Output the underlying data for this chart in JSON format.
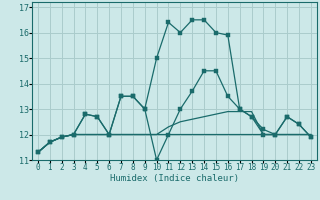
{
  "title": "",
  "xlabel": "Humidex (Indice chaleur)",
  "background_color": "#cce8e8",
  "grid_color": "#aacccc",
  "line_color": "#1a6b6b",
  "xlim": [
    -0.5,
    23.5
  ],
  "ylim": [
    11,
    17.2
  ],
  "yticks": [
    11,
    12,
    13,
    14,
    15,
    16,
    17
  ],
  "xtick_labels": [
    "0",
    "1",
    "2",
    "3",
    "4",
    "5",
    "6",
    "7",
    "8",
    "9",
    "10",
    "11",
    "12",
    "13",
    "14",
    "15",
    "16",
    "17",
    "18",
    "19",
    "20",
    "21",
    "22",
    "23"
  ],
  "series": [
    {
      "y": [
        11.3,
        11.7,
        11.9,
        12.0,
        12.8,
        12.7,
        12.0,
        13.5,
        13.5,
        13.0,
        15.0,
        16.4,
        16.0,
        16.5,
        16.5,
        16.0,
        15.9,
        13.0,
        12.7,
        12.2,
        12.0,
        12.7,
        12.4,
        11.9
      ],
      "marker": true
    },
    {
      "y": [
        11.3,
        11.7,
        11.9,
        12.0,
        12.8,
        12.7,
        12.0,
        13.5,
        13.5,
        13.0,
        11.0,
        12.0,
        13.0,
        13.7,
        14.5,
        14.5,
        13.5,
        13.0,
        12.7,
        12.0,
        12.0,
        12.7,
        12.4,
        11.9
      ],
      "marker": true
    },
    {
      "y": [
        11.3,
        11.7,
        11.9,
        12.0,
        12.0,
        12.0,
        12.0,
        12.0,
        12.0,
        12.0,
        12.0,
        12.3,
        12.5,
        12.6,
        12.7,
        12.8,
        12.9,
        12.9,
        12.9,
        12.0,
        12.0,
        12.0,
        12.0,
        12.0
      ],
      "marker": false
    },
    {
      "y": [
        11.3,
        11.7,
        11.9,
        12.0,
        12.0,
        12.0,
        12.0,
        12.0,
        12.0,
        12.0,
        12.0,
        12.0,
        12.0,
        12.0,
        12.0,
        12.0,
        12.0,
        12.0,
        12.0,
        12.0,
        12.0,
        12.0,
        12.0,
        12.0
      ],
      "marker": false
    }
  ],
  "font_family": "monospace",
  "xlabel_fontsize": 6.5,
  "tick_fontsize": 5.5,
  "ytick_fontsize": 6.0
}
